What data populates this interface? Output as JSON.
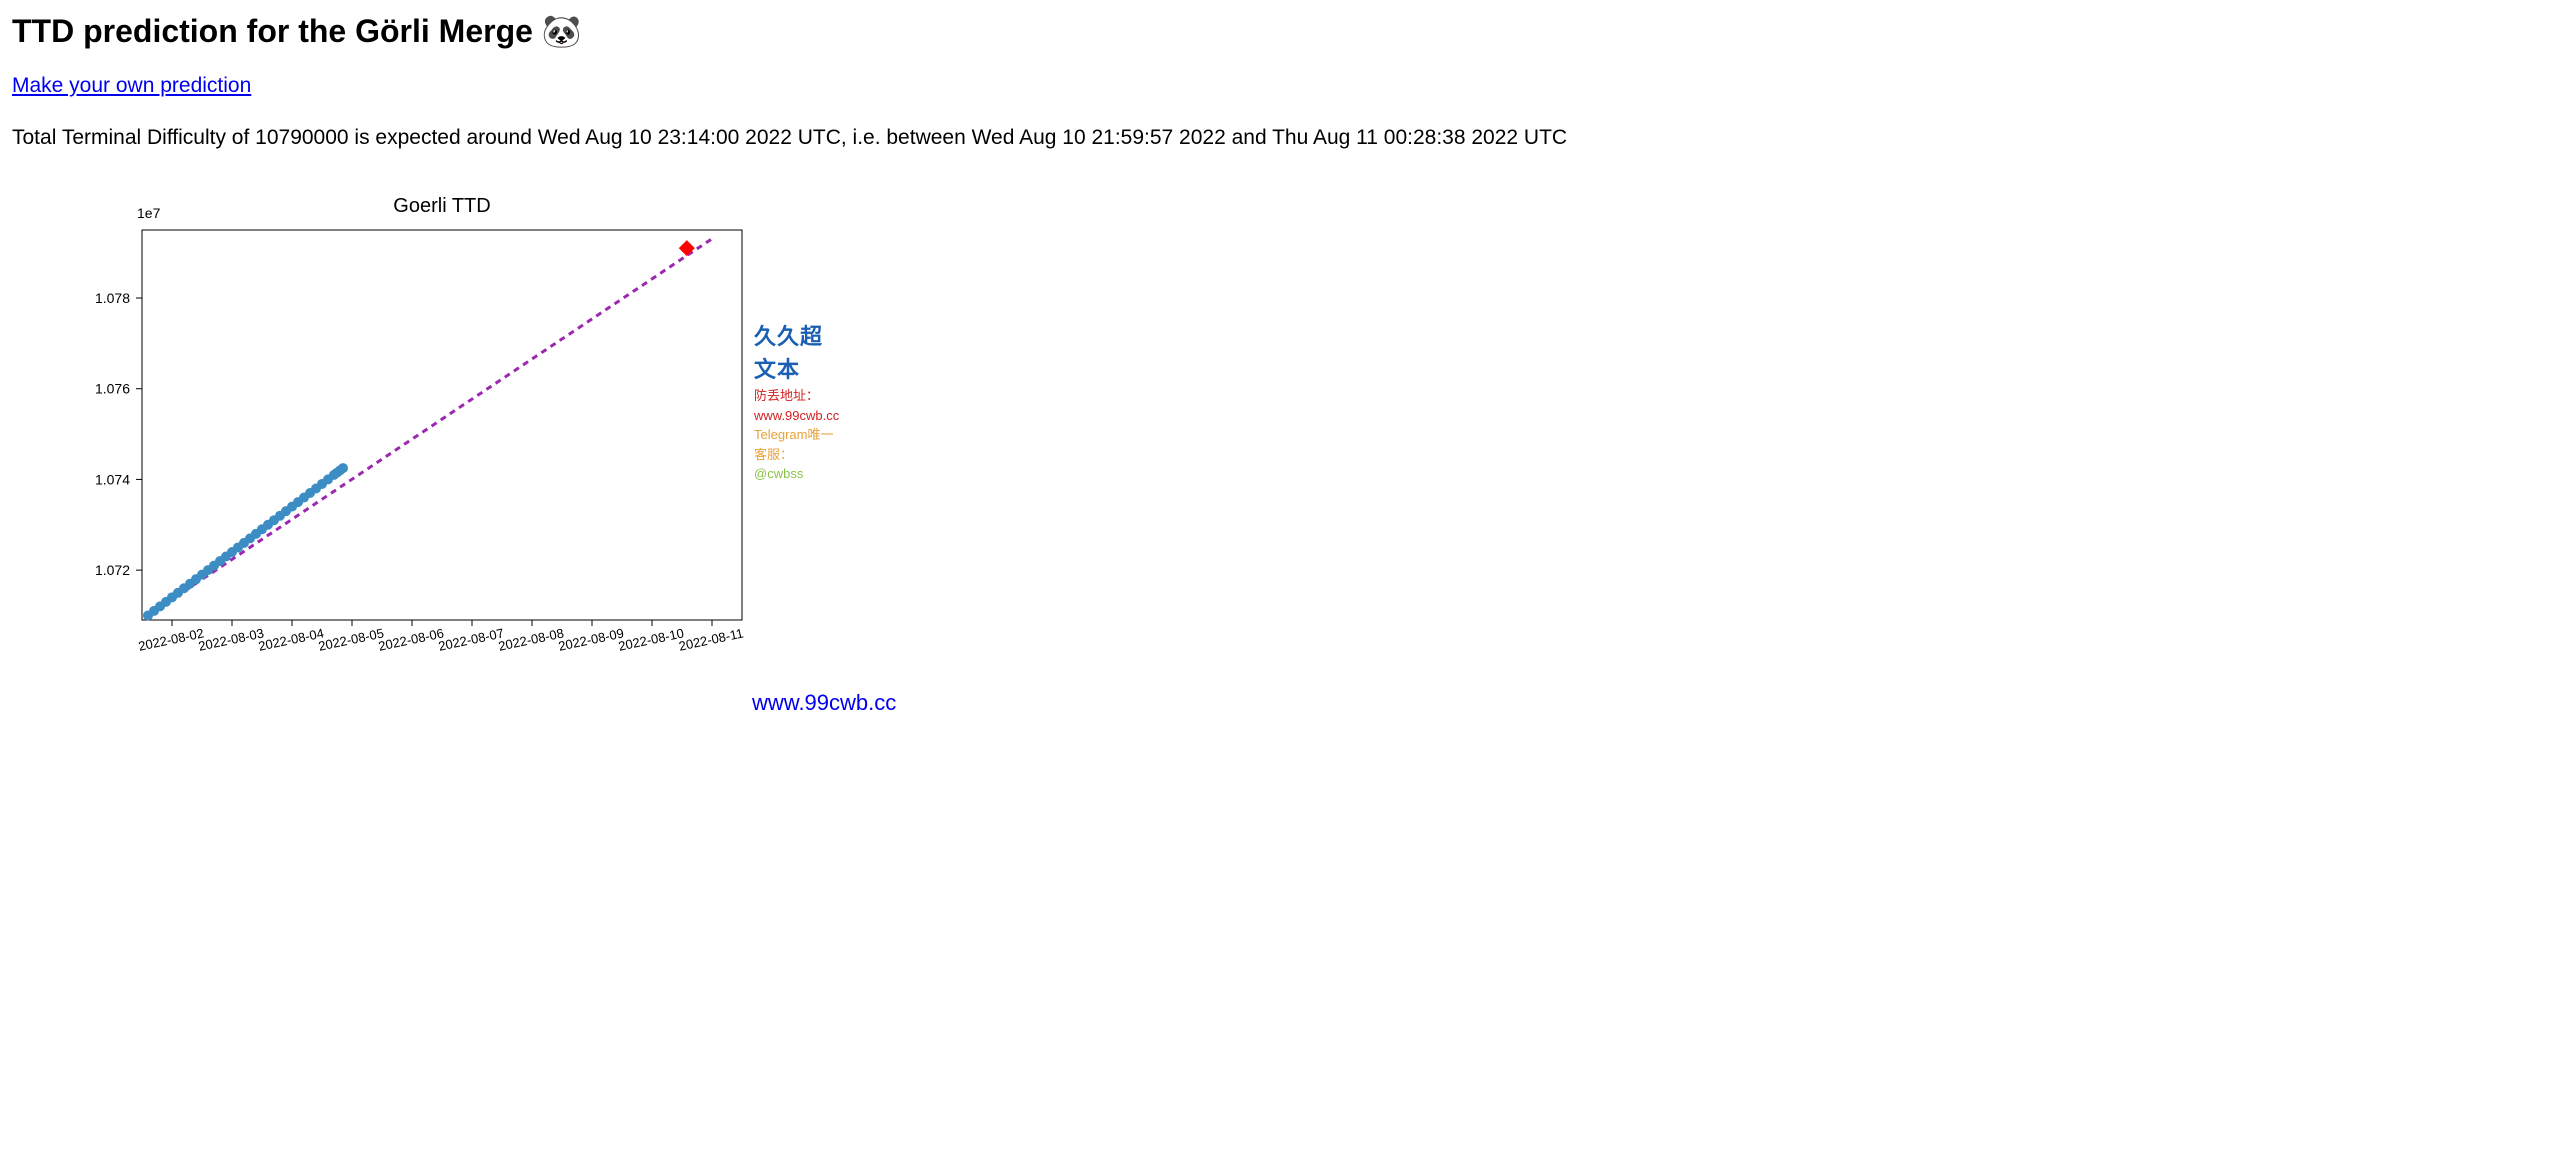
{
  "page": {
    "title": "TTD prediction for the Görli Merge 🐼",
    "link_text": "Make your own prediction",
    "description": "Total Terminal Difficulty of 10790000 is expected around Wed Aug 10 23:14:00 2022 UTC, i.e. between Wed Aug 10 21:59:57 2022 and Thu Aug 11 00:28:38 2022 UTC"
  },
  "chart": {
    "type": "line",
    "title": "Goerli TTD",
    "title_fontsize": 20,
    "exponent_label": "1e7",
    "background_color": "#ffffff",
    "plot_border_color": "#000000",
    "x_ticks": [
      "2022-08-02",
      "2022-08-03",
      "2022-08-04",
      "2022-08-05",
      "2022-08-06",
      "2022-08-07",
      "2022-08-08",
      "2022-08-09",
      "2022-08-10",
      "2022-08-11"
    ],
    "x_tick_rotation": -12,
    "x_tick_fontsize": 13,
    "y_ticks": [
      1.072,
      1.074,
      1.076,
      1.078
    ],
    "y_tick_fontsize": 14,
    "ylim": [
      1.0709,
      1.0795
    ],
    "xlim_idx": [
      0,
      10
    ],
    "observed_series": {
      "color": "#3b8dc4",
      "marker": "circle",
      "marker_size": 5,
      "x_idx": [
        0.1,
        0.2,
        0.3,
        0.4,
        0.5,
        0.6,
        0.7,
        0.8,
        0.9,
        1.0,
        1.1,
        1.2,
        1.3,
        1.4,
        1.5,
        1.6,
        1.7,
        1.8,
        1.9,
        2.0,
        2.1,
        2.2,
        2.3,
        2.4,
        2.5,
        2.6,
        2.7,
        2.8,
        2.9,
        3.0,
        3.1,
        3.2,
        3.25,
        3.3,
        3.35
      ],
      "y": [
        1.071,
        1.0711,
        1.0712,
        1.0713,
        1.0714,
        1.0715,
        1.0716,
        1.0717,
        1.0718,
        1.0719,
        1.072,
        1.0721,
        1.0722,
        1.0723,
        1.0724,
        1.0725,
        1.0726,
        1.0727,
        1.0728,
        1.0729,
        1.073,
        1.0731,
        1.0732,
        1.0733,
        1.0734,
        1.0735,
        1.0736,
        1.0737,
        1.0738,
        1.0739,
        1.074,
        1.0741,
        1.07415,
        1.0742,
        1.07425
      ]
    },
    "prediction_line": {
      "color": "#9c27b0",
      "dash": "6,5",
      "width": 3,
      "x_idx": [
        0.1,
        9.55
      ],
      "y": [
        1.071,
        1.07935
      ]
    },
    "target_marker": {
      "color": "#ff0000",
      "size": 8,
      "x_idx": 9.08,
      "y": 1.0791
    }
  },
  "watermark": {
    "title": "久久超文本",
    "line2_label": "防丢地址：",
    "line2_url": "www.99cwb.cc",
    "line3_label": "Telegram唯一客服：",
    "line3_handle": "@cwbss"
  },
  "footer": {
    "url": "www.99cwb.cc"
  }
}
